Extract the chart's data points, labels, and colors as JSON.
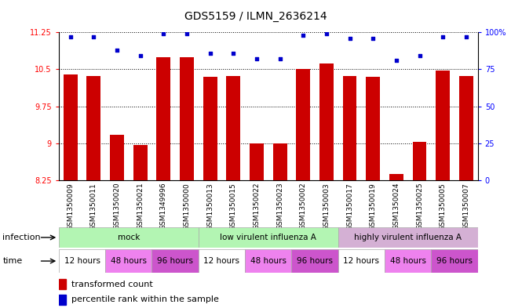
{
  "title": "GDS5159 / ILMN_2636214",
  "samples": [
    "GSM1350009",
    "GSM1350011",
    "GSM1350020",
    "GSM1350021",
    "GSM1349996",
    "GSM1350000",
    "GSM1350013",
    "GSM1350015",
    "GSM1350022",
    "GSM1350023",
    "GSM1350002",
    "GSM1350003",
    "GSM1350017",
    "GSM1350019",
    "GSM1350024",
    "GSM1350025",
    "GSM1350005",
    "GSM1350007"
  ],
  "bar_values": [
    10.4,
    10.37,
    9.17,
    8.97,
    10.75,
    10.75,
    10.35,
    10.37,
    9.0,
    9.0,
    10.5,
    10.62,
    10.37,
    10.35,
    8.38,
    9.02,
    10.48,
    10.37
  ],
  "percentile_values": [
    97,
    97,
    88,
    84,
    99,
    99,
    86,
    86,
    82,
    82,
    98,
    99,
    96,
    96,
    81,
    84,
    97,
    97
  ],
  "ylim_left": [
    8.25,
    11.25
  ],
  "ylim_right": [
    0,
    100
  ],
  "yticks_left": [
    8.25,
    9.0,
    9.75,
    10.5,
    11.25
  ],
  "yticks_right": [
    0,
    25,
    50,
    75,
    100
  ],
  "ytick_labels_left": [
    "8.25",
    "9",
    "9.75",
    "10.5",
    "11.25"
  ],
  "ytick_labels_right": [
    "0",
    "25",
    "50",
    "75",
    "100%"
  ],
  "bar_color": "#cc0000",
  "dot_color": "#0000cc",
  "bar_width": 0.6,
  "infection_data": [
    {
      "label": "mock",
      "start": 0,
      "end": 6,
      "color": "#b3f5b3"
    },
    {
      "label": "low virulent influenza A",
      "start": 6,
      "end": 12,
      "color": "#b3f5b3"
    },
    {
      "label": "highly virulent influenza A",
      "start": 12,
      "end": 18,
      "color": "#d4b0d4"
    }
  ],
  "time_data": [
    {
      "label": "12 hours",
      "start": 0,
      "end": 2,
      "color": "#ffffff"
    },
    {
      "label": "48 hours",
      "start": 2,
      "end": 4,
      "color": "#ee82ee"
    },
    {
      "label": "96 hours",
      "start": 4,
      "end": 6,
      "color": "#cc55cc"
    },
    {
      "label": "12 hours",
      "start": 6,
      "end": 8,
      "color": "#ffffff"
    },
    {
      "label": "48 hours",
      "start": 8,
      "end": 10,
      "color": "#ee82ee"
    },
    {
      "label": "96 hours",
      "start": 10,
      "end": 12,
      "color": "#cc55cc"
    },
    {
      "label": "12 hours",
      "start": 12,
      "end": 14,
      "color": "#ffffff"
    },
    {
      "label": "48 hours",
      "start": 14,
      "end": 16,
      "color": "#ee82ee"
    },
    {
      "label": "96 hours",
      "start": 16,
      "end": 18,
      "color": "#cc55cc"
    }
  ],
  "infection_label": "infection",
  "time_label": "time",
  "legend_bar_label": "transformed count",
  "legend_dot_label": "percentile rank within the sample",
  "title_fontsize": 10,
  "tick_fontsize": 7,
  "label_fontsize": 8,
  "row_fontsize": 7.5
}
